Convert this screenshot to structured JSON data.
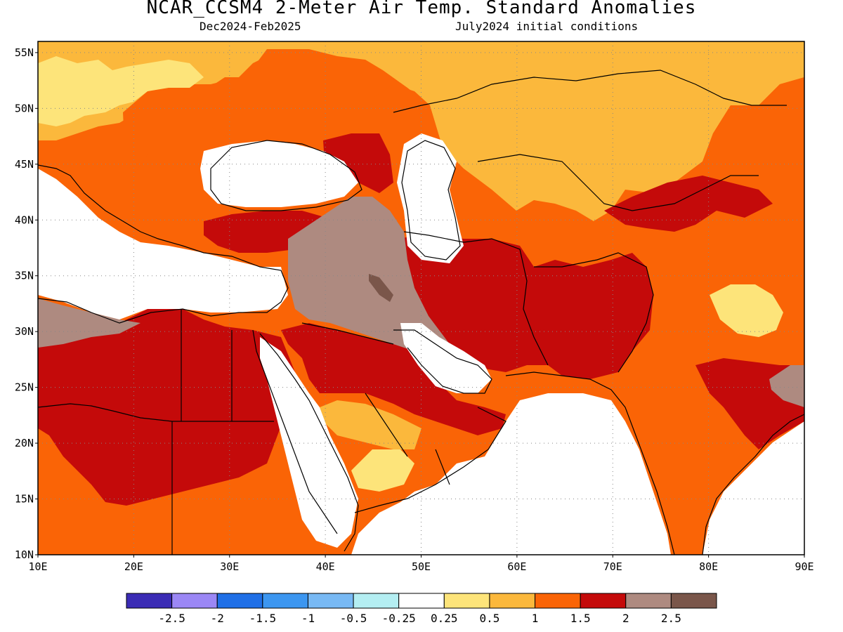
{
  "title": "NCAR_CCSM4 2-Meter Air Temp. Standard Anomalies",
  "subtitle_left": "Dec2024-Feb2025",
  "subtitle_right": "July2024 initial conditions",
  "map": {
    "lon_range": [
      10,
      90
    ],
    "lat_range": [
      10,
      56
    ],
    "lat_labels": [
      "55N",
      "50N",
      "45N",
      "40N",
      "35N",
      "30N",
      "25N",
      "20N",
      "15N",
      "10N"
    ],
    "lat_values": [
      55,
      50,
      45,
      40,
      35,
      30,
      25,
      20,
      15,
      10
    ],
    "lon_labels": [
      "10E",
      "20E",
      "30E",
      "40E",
      "50E",
      "60E",
      "70E",
      "80E",
      "90E"
    ],
    "lon_values": [
      10,
      20,
      30,
      40,
      50,
      60,
      70,
      80,
      90
    ],
    "grid": "dotted"
  },
  "colorbar": {
    "colors": [
      "#3b2cb5",
      "#9b87f5",
      "#1f6fe6",
      "#3c96f0",
      "#78b9f4",
      "#b4eef2",
      "#ffffff",
      "#fde47a",
      "#fbb83c",
      "#fa6406",
      "#c40a0a",
      "#ae8a80",
      "#7a564a"
    ],
    "labels": [
      "-2.5",
      "-2",
      "-1.5",
      "-1",
      "-0.5",
      "-0.25",
      "0.25",
      "0.5",
      "1",
      "1.5",
      "2",
      "2.5"
    ]
  },
  "palette": {
    "lt_yellow": "#fde47a",
    "yellow_orange": "#fbb83c",
    "orange": "#fa6406",
    "dark_red": "#c40a0a",
    "brown": "#ae8a80",
    "dark_brown": "#7a564a",
    "white": "#ffffff"
  }
}
